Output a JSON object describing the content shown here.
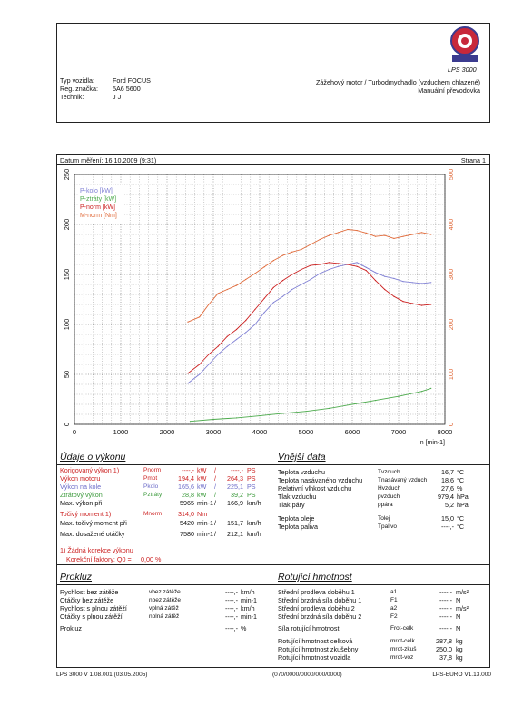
{
  "header": {
    "brand_text": "LPS 3000",
    "labels": [
      "Typ vozidla:",
      "Reg. značka:",
      "Technik:"
    ],
    "values": [
      "Ford FOCUS",
      "5A6 5600",
      "J J"
    ],
    "engine": "Zážehový motor / Turbodmychadlo (vzduchem chlazené)",
    "gearbox": "Manuální převodovka"
  },
  "measure": {
    "date_label": "Datum měření: 16.10.2009 (9:31)",
    "page_label": "Strana 1"
  },
  "chart_data": {
    "type": "line",
    "x_ticks": [
      "0",
      "1000",
      "2000",
      "3000",
      "4000",
      "5000",
      "6000",
      "7000",
      "8000"
    ],
    "x_unit": "n [min-1]",
    "xlim": [
      0,
      8000
    ],
    "ylim_left": [
      0,
      250
    ],
    "ylim_right": [
      0,
      500
    ],
    "y_ticks_left": [
      "0",
      "50",
      "100",
      "150",
      "200",
      "250"
    ],
    "y_ticks_right": [
      "0",
      "100",
      "200",
      "300",
      "400",
      "500"
    ],
    "grid": true,
    "legend_position": "top-left",
    "series": [
      {
        "name": "P-kolo [kW]",
        "color": "#7f7fd4",
        "axis": "left",
        "x": [
          2450,
          2700,
          2900,
          3100,
          3300,
          3500,
          3700,
          3900,
          4100,
          4300,
          4500,
          4700,
          4900,
          5100,
          5300,
          5500,
          5700,
          5900,
          6100,
          6300,
          6500,
          6700,
          6900,
          7100,
          7300,
          7500,
          7700
        ],
        "y": [
          41,
          50,
          60,
          70,
          78,
          85,
          92,
          100,
          112,
          122,
          128,
          135,
          140,
          145,
          151,
          155,
          158,
          160,
          162,
          157,
          152,
          148,
          146,
          143,
          142,
          141,
          142
        ]
      },
      {
        "name": "P-ztráty [kW]",
        "color": "#4caa4c",
        "axis": "left",
        "x": [
          2500,
          3000,
          3500,
          4000,
          4500,
          5000,
          5500,
          6000,
          6500,
          7000,
          7500,
          7700
        ],
        "y": [
          3,
          5,
          6.5,
          8.5,
          11,
          13,
          16,
          20,
          24,
          28,
          33,
          36
        ]
      },
      {
        "name": "P-norm [kW]",
        "color": "#cc2222",
        "axis": "left",
        "x": [
          2450,
          2700,
          2900,
          3100,
          3300,
          3500,
          3700,
          3900,
          4100,
          4300,
          4500,
          4700,
          4900,
          5100,
          5300,
          5500,
          5700,
          5900,
          6100,
          6300,
          6500,
          6700,
          6900,
          7100,
          7300,
          7500,
          7700
        ],
        "y": [
          51,
          60,
          70,
          78,
          88,
          95,
          104,
          115,
          126,
          137,
          144,
          150,
          155,
          159,
          160,
          162,
          161,
          160,
          158,
          154,
          144,
          135,
          128,
          123,
          121,
          119,
          120
        ]
      },
      {
        "name": "M-norm [Nm]",
        "color": "#e06a3a",
        "axis": "right",
        "x": [
          2450,
          2700,
          2900,
          3100,
          3300,
          3500,
          3700,
          3900,
          4100,
          4300,
          4500,
          4700,
          4900,
          5100,
          5300,
          5500,
          5700,
          5900,
          6100,
          6300,
          6500,
          6700,
          6900,
          7100,
          7300,
          7500,
          7700
        ],
        "y": [
          205,
          215,
          240,
          262,
          270,
          278,
          290,
          302,
          315,
          328,
          338,
          345,
          350,
          360,
          370,
          378,
          384,
          390,
          388,
          383,
          376,
          378,
          372,
          376,
          380,
          384,
          380
        ]
      }
    ]
  },
  "power": {
    "section_title": "Údaje o výkonu",
    "rows": [
      {
        "label": "Korigovaný výkon 1)",
        "sym": "Pnorm",
        "val1": "----,-",
        "u1": "kW",
        "val2": "----,-",
        "u2": "PS",
        "color": "red"
      },
      {
        "label": "Výkon motoru",
        "sym": "Pmot",
        "val1": "194,4",
        "u1": "kW",
        "val2": "264,3",
        "u2": "PS",
        "color": "red"
      },
      {
        "label": "Výkon na kole",
        "sym": "Pkolo",
        "val1": "165,6",
        "u1": "kW",
        "val2": "225,1",
        "u2": "PS",
        "color": "blue"
      },
      {
        "label": "Ztrátový výkon",
        "sym": "Pztráty",
        "val1": "28,8",
        "u1": "kW",
        "val2": "39,2",
        "u2": "PS",
        "color": "green"
      },
      {
        "label": "Max. výkon při",
        "sym": "",
        "val1": "5965",
        "u1": "min-1",
        "val2": "166,9",
        "u2": "km/h",
        "color": "black"
      },
      {
        "label": "Točivý moment 1)",
        "sym": "Mnorm",
        "val1": "314,0",
        "u1": "Nm",
        "val2": "",
        "u2": "",
        "color": "red"
      },
      {
        "label": "Max. točivý moment při",
        "sym": "",
        "val1": "5420",
        "u1": "min-1",
        "val2": "151,7",
        "u2": "km/h",
        "color": "black"
      },
      {
        "label": "Max. dosažené otáčky",
        "sym": "",
        "val1": "7580",
        "u1": "min-1",
        "val2": "212,1",
        "u2": "km/h",
        "color": "black"
      }
    ],
    "note1": "1) Žádná korekce výkonu",
    "note2": "Korekční faktory: Q0 =",
    "note2_val": "0,00 %"
  },
  "external": {
    "section_title": "Vnější data",
    "rows": [
      {
        "label": "Teplota vzduchu",
        "sym": "Tvzduch",
        "val": "16,7",
        "unit": "°C"
      },
      {
        "label": "Teplota nasávaného vzduchu",
        "sym": "Tnasávaný vzduch",
        "val": "18,6",
        "unit": "°C"
      },
      {
        "label": "Relativní vlhkost vzduchu",
        "sym": "Hvzduch",
        "val": "27,6",
        "unit": "%"
      },
      {
        "label": "Tlak vzduchu",
        "sym": "pvzduch",
        "val": "979,4",
        "unit": "hPa"
      },
      {
        "label": "Tlak páry",
        "sym": "ppára",
        "val": "5,2",
        "unit": "hPa"
      },
      {
        "label": "Teplota oleje",
        "sym": "Tolej",
        "val": "15,0",
        "unit": "°C"
      },
      {
        "label": "Teplota paliva",
        "sym": "Tpalivo",
        "val": "----,-",
        "unit": "°C"
      }
    ]
  },
  "rundown": {
    "section_title": "Prokluz",
    "rows": [
      {
        "label": "Rychlost bez zátěže",
        "sym": "vbez zátěže",
        "val": "----,-",
        "unit": "km/h"
      },
      {
        "label": "Otáčky bez zátěže",
        "sym": "nbez zátěže",
        "val": "----,-",
        "unit": "min-1"
      },
      {
        "label": "Rychlost s plnou zátěží",
        "sym": "vplná zátěž",
        "val": "----,-",
        "unit": "km/h"
      },
      {
        "label": "Otáčky s plnou zátěží",
        "sym": "nplná zátěž",
        "val": "----,-",
        "unit": "min-1"
      },
      {
        "label": "Prokluz",
        "sym": "",
        "val": "----,-",
        "unit": "%"
      }
    ]
  },
  "rotating": {
    "section_title": "Rotující hmotnost",
    "rows": [
      {
        "label": "Střední prodleva doběhu 1",
        "sym": "a1",
        "val": "----,-",
        "unit": "m/s²"
      },
      {
        "label": "Střední brzdná síla doběhu 1",
        "sym": "F1",
        "val": "----,-",
        "unit": "N"
      },
      {
        "label": "Střední prodleva doběhu 2",
        "sym": "a2",
        "val": "----,-",
        "unit": "m/s²"
      },
      {
        "label": "Střední brzdná síla doběhu 2",
        "sym": "F2",
        "val": "----,-",
        "unit": "N"
      },
      {
        "label": "Síla rotující hmotnosti",
        "sym": "Frot-celk",
        "val": "----,-",
        "unit": "N"
      },
      {
        "label": "Rotující hmotnost celková",
        "sym": "mrot-celk",
        "val": "287,8",
        "unit": "kg"
      },
      {
        "label": "Rotující hmotnost zkušebny",
        "sym": "mrot-zkuš",
        "val": "250,0",
        "unit": "kg"
      },
      {
        "label": "Rotující hmotnost vozidla",
        "sym": "mrot-voz",
        "val": "37,8",
        "unit": "kg"
      }
    ]
  },
  "footer": {
    "left": "LPS 3000 V 1.08.001 (03.05.2005)",
    "center": "(070/0000/0000/000/0000)",
    "right": "LPS-EURO V1.13.000"
  }
}
